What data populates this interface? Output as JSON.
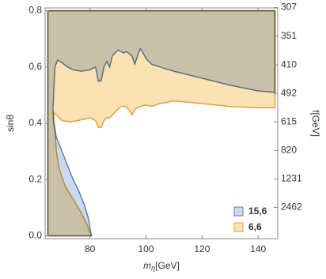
{
  "chart_data": {
    "type": "region",
    "x_label": "m",
    "x_label_sub": "η",
    "x_label_unit": "[GeV]",
    "y_label": "sinθ",
    "y2_label": "f[GeV]",
    "xlim": [
      64,
      147
    ],
    "xticks": [
      80,
      100,
      120,
      140
    ],
    "ylim": [
      -0.01,
      0.81
    ],
    "yticks": [
      {
        "value": 0,
        "label": "0.0"
      },
      0.2,
      0.4,
      0.6,
      0.8
    ],
    "y2_scale": "reciprocal",
    "y2lim": [
      null,
      307.5
    ],
    "y2ticks": [
      307,
      351,
      410,
      492,
      615,
      820,
      1231,
      2462
    ],
    "legend": "lower right",
    "series": [
      {
        "name": "15,6",
        "color": "#5b7fba",
        "fill": "#cdd9ef",
        "x": [
          65,
          146,
          146,
          140,
          130,
          120,
          110,
          105,
          102,
          100,
          99,
          98,
          97,
          96,
          95,
          93,
          92,
          90,
          88,
          87,
          86,
          85,
          84,
          83,
          82,
          80,
          77,
          74,
          72,
          70,
          68.5,
          67.5,
          66.8,
          67,
          68,
          70,
          72,
          74,
          76,
          78,
          79.5,
          80.5,
          65
        ],
        "values": [
          0.8,
          0.8,
          0.51,
          0.515,
          0.535,
          0.56,
          0.585,
          0.6,
          0.61,
          0.63,
          0.65,
          0.665,
          0.64,
          0.61,
          0.64,
          0.655,
          0.65,
          0.66,
          0.64,
          0.6,
          0.62,
          0.6,
          0.55,
          0.55,
          0.6,
          0.59,
          0.585,
          0.59,
          0.6,
          0.615,
          0.625,
          0.6,
          0.45,
          0.4,
          0.35,
          0.3,
          0.25,
          0.2,
          0.16,
          0.11,
          0.06,
          0,
          0
        ]
      },
      {
        "name": "6,6",
        "color": "#e8a032",
        "fill": "#fbe2b4",
        "x": [
          65,
          146,
          146,
          140,
          130,
          120,
          110,
          105,
          102,
          100,
          98,
          96,
          95,
          93,
          91,
          89,
          88,
          87,
          86,
          85,
          84,
          83,
          82,
          80,
          76,
          73,
          70,
          68,
          67,
          67.5,
          68,
          69,
          71,
          74,
          77,
          79,
          80,
          80.5,
          65
        ],
        "values": [
          0.8,
          0.8,
          0.455,
          0.455,
          0.46,
          0.47,
          0.48,
          0.47,
          0.46,
          0.465,
          0.46,
          0.45,
          0.43,
          0.46,
          0.46,
          0.44,
          0.43,
          0.42,
          0.42,
          0.41,
          0.385,
          0.385,
          0.41,
          0.42,
          0.41,
          0.405,
          0.41,
          0.43,
          0.44,
          0.38,
          0.3,
          0.24,
          0.18,
          0.13,
          0.08,
          0.04,
          0.01,
          0,
          0
        ]
      }
    ]
  }
}
